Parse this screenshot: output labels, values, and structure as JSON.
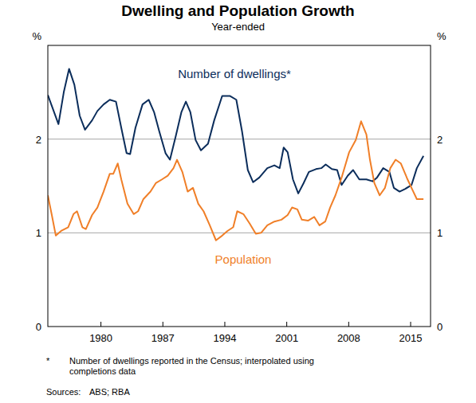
{
  "chart_data": {
    "type": "line",
    "title": "Dwelling and Population Growth",
    "subtitle": "Year-ended",
    "y_label": "%",
    "xlim": [
      1974,
      2017.25
    ],
    "xticks": [
      1980,
      1987,
      1994,
      2001,
      2008,
      2015
    ],
    "ylim": [
      0,
      3
    ],
    "yticks": [
      0,
      1,
      2
    ],
    "grid": true,
    "footnote_marker": "*",
    "footnote": [
      "Number of dwellings reported in the Census; interpolated using",
      "completions data"
    ],
    "sources_label": "Sources:",
    "sources": "ABS; RBA",
    "series": [
      {
        "name": "Number of dwellings*",
        "color": "#0b2d5b",
        "x": [
          1974.0,
          1974.7,
          1975.2,
          1975.8,
          1976.4,
          1977.0,
          1977.6,
          1978.2,
          1979.0,
          1979.6,
          1980.3,
          1981.0,
          1981.7,
          1982.3,
          1982.9,
          1983.3,
          1983.9,
          1984.7,
          1985.4,
          1986.0,
          1986.6,
          1987.3,
          1987.8,
          1988.45,
          1989.1,
          1989.6,
          1990.1,
          1990.7,
          1991.3,
          1992.1,
          1992.8,
          1993.7,
          1994.6,
          1995.3,
          1995.95,
          1996.6,
          1997.2,
          1997.9,
          1998.8,
          1999.6,
          2000.2,
          2000.65,
          2001.1,
          2001.7,
          2002.3,
          2002.9,
          2003.5,
          2004.3,
          2004.9,
          2005.4,
          2006.1,
          2006.7,
          2007.2,
          2007.9,
          2008.5,
          2009.2,
          2010.0,
          2010.7,
          2011.2,
          2011.9,
          2012.6,
          2013.1,
          2013.75,
          2014.4,
          2015.1,
          2015.7,
          2016.45
        ],
        "values": [
          2.47,
          2.29,
          2.16,
          2.5,
          2.75,
          2.58,
          2.25,
          2.1,
          2.2,
          2.3,
          2.37,
          2.42,
          2.4,
          2.12,
          1.85,
          1.84,
          2.12,
          2.37,
          2.42,
          2.29,
          2.08,
          1.85,
          1.78,
          2.03,
          2.29,
          2.4,
          2.29,
          1.99,
          1.88,
          1.95,
          2.2,
          2.46,
          2.46,
          2.42,
          2.08,
          1.67,
          1.54,
          1.59,
          1.69,
          1.72,
          1.69,
          1.91,
          1.86,
          1.57,
          1.42,
          1.53,
          1.65,
          1.68,
          1.69,
          1.73,
          1.68,
          1.67,
          1.51,
          1.61,
          1.67,
          1.57,
          1.57,
          1.55,
          1.59,
          1.69,
          1.65,
          1.48,
          1.44,
          1.47,
          1.51,
          1.69,
          1.82
        ]
      },
      {
        "name": "Population",
        "color": "#f07f28",
        "x": [
          1974.0,
          1974.45,
          1974.9,
          1975.5,
          1976.3,
          1976.9,
          1977.3,
          1977.9,
          1978.3,
          1979.0,
          1979.6,
          1980.3,
          1981.0,
          1981.4,
          1981.9,
          1982.3,
          1983.0,
          1983.7,
          1984.2,
          1984.8,
          1985.6,
          1986.2,
          1986.9,
          1987.55,
          1988.2,
          1988.6,
          1989.2,
          1989.8,
          1990.4,
          1991.0,
          1991.6,
          1992.3,
          1993.0,
          1993.7,
          1994.3,
          1994.95,
          1995.4,
          1996.1,
          1996.8,
          1997.5,
          1998.1,
          1998.8,
          1999.6,
          2000.4,
          2001.1,
          2001.6,
          2002.2,
          2002.7,
          2003.4,
          2004.1,
          2004.7,
          2005.35,
          2005.9,
          2006.5,
          2007.2,
          2008.05,
          2008.8,
          2009.4,
          2010.0,
          2010.4,
          2010.9,
          2011.5,
          2012.1,
          2012.7,
          2013.3,
          2013.9,
          2014.65,
          2015.3,
          2015.7,
          2016.45
        ],
        "values": [
          1.4,
          1.19,
          0.97,
          1.02,
          1.06,
          1.2,
          1.23,
          1.06,
          1.04,
          1.19,
          1.27,
          1.44,
          1.63,
          1.63,
          1.74,
          1.57,
          1.31,
          1.2,
          1.23,
          1.36,
          1.44,
          1.53,
          1.57,
          1.61,
          1.69,
          1.78,
          1.65,
          1.44,
          1.48,
          1.31,
          1.23,
          1.08,
          0.92,
          0.97,
          1.02,
          1.06,
          1.23,
          1.2,
          1.1,
          0.99,
          1.0,
          1.08,
          1.12,
          1.14,
          1.19,
          1.27,
          1.25,
          1.14,
          1.13,
          1.17,
          1.08,
          1.12,
          1.27,
          1.4,
          1.59,
          1.86,
          1.99,
          2.19,
          2.05,
          1.78,
          1.53,
          1.4,
          1.48,
          1.69,
          1.78,
          1.74,
          1.57,
          1.44,
          1.36,
          1.36
        ]
      }
    ]
  }
}
